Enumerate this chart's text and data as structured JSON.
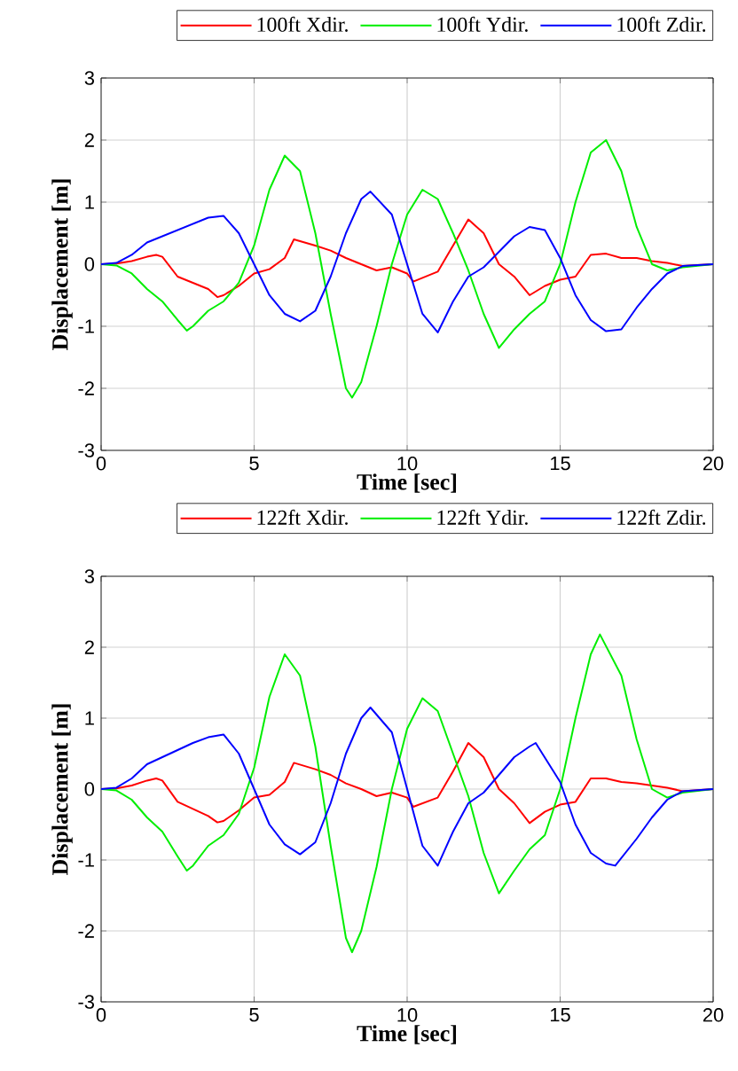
{
  "chart_data": [
    {
      "type": "line",
      "xlabel": "Time [sec]",
      "ylabel": "Displacement [m]",
      "xlim": [
        0,
        20
      ],
      "ylim": [
        -3,
        3
      ],
      "xticks": [
        0,
        5,
        10,
        15,
        20
      ],
      "yticks": [
        -3,
        -2,
        -1,
        0,
        1,
        2,
        3
      ],
      "grid": true,
      "legend": "top",
      "series": [
        {
          "name": "100ft Xdir.",
          "color": "#ff0000",
          "x": [
            0,
            0.5,
            1,
            1.5,
            1.8,
            2,
            2.5,
            3,
            3.5,
            3.8,
            4,
            4.5,
            5,
            5.5,
            6,
            6.3,
            7,
            7.5,
            8,
            8.5,
            9,
            9.5,
            10,
            10.2,
            11,
            11.5,
            12,
            12.5,
            13,
            13.5,
            14,
            14.5,
            15,
            15.5,
            16,
            16.5,
            17,
            17.5,
            18,
            18.5,
            19,
            20
          ],
          "values": [
            0,
            0.01,
            0.05,
            0.12,
            0.15,
            0.12,
            -0.2,
            -0.3,
            -0.4,
            -0.53,
            -0.5,
            -0.35,
            -0.15,
            -0.08,
            0.1,
            0.4,
            0.3,
            0.22,
            0.1,
            0.0,
            -0.1,
            -0.05,
            -0.15,
            -0.28,
            -0.12,
            0.3,
            0.72,
            0.5,
            0.0,
            -0.2,
            -0.5,
            -0.35,
            -0.25,
            -0.2,
            0.15,
            0.17,
            0.1,
            0.1,
            0.05,
            0.02,
            -0.03,
            0
          ]
        },
        {
          "name": "100ft Ydir.",
          "color": "#00ee00",
          "x": [
            0,
            0.5,
            1,
            1.5,
            2,
            2.5,
            2.8,
            3,
            3.5,
            4,
            4.5,
            5,
            5.5,
            6,
            6.5,
            7,
            7.5,
            8,
            8.2,
            8.5,
            9,
            9.5,
            10,
            10.5,
            11,
            11.5,
            12,
            12.5,
            13,
            13.5,
            14,
            14.5,
            15,
            15.5,
            16,
            16.5,
            17,
            17.5,
            18,
            18.5,
            19,
            20
          ],
          "values": [
            0,
            -0.02,
            -0.15,
            -0.4,
            -0.6,
            -0.9,
            -1.07,
            -1.0,
            -0.75,
            -0.6,
            -0.3,
            0.3,
            1.2,
            1.75,
            1.5,
            0.5,
            -0.8,
            -2.0,
            -2.15,
            -1.9,
            -1.0,
            0.0,
            0.8,
            1.2,
            1.05,
            0.5,
            -0.1,
            -0.8,
            -1.35,
            -1.05,
            -0.8,
            -0.6,
            0.0,
            1.0,
            1.8,
            2.0,
            1.5,
            0.6,
            0.0,
            -0.1,
            -0.05,
            0
          ]
        },
        {
          "name": "100ft Zdir.",
          "color": "#0000ff",
          "x": [
            0,
            0.5,
            1,
            1.5,
            2,
            2.5,
            3,
            3.5,
            4,
            4.5,
            5,
            5.5,
            6,
            6.5,
            7,
            7.5,
            8,
            8.5,
            8.8,
            9.5,
            10,
            10.5,
            11,
            11.5,
            12,
            12.5,
            13,
            13.5,
            14,
            14.5,
            15,
            15.5,
            16,
            16.5,
            17,
            17.5,
            18,
            18.5,
            19,
            20
          ],
          "values": [
            0,
            0.02,
            0.15,
            0.35,
            0.45,
            0.55,
            0.65,
            0.75,
            0.78,
            0.5,
            0.0,
            -0.5,
            -0.8,
            -0.92,
            -0.75,
            -0.2,
            0.5,
            1.05,
            1.17,
            0.8,
            0.0,
            -0.8,
            -1.1,
            -0.6,
            -0.2,
            -0.05,
            0.2,
            0.45,
            0.6,
            0.55,
            0.1,
            -0.5,
            -0.9,
            -1.08,
            -1.05,
            -0.7,
            -0.4,
            -0.15,
            -0.03,
            0
          ]
        }
      ]
    },
    {
      "type": "line",
      "xlabel": "Time [sec]",
      "ylabel": "Displacement [m]",
      "xlim": [
        0,
        20
      ],
      "ylim": [
        -3,
        3
      ],
      "xticks": [
        0,
        5,
        10,
        15,
        20
      ],
      "yticks": [
        -3,
        -2,
        -1,
        0,
        1,
        2,
        3
      ],
      "grid": true,
      "legend": "top",
      "series": [
        {
          "name": "122ft Xdir.",
          "color": "#ff0000",
          "x": [
            0,
            0.5,
            1,
            1.5,
            1.8,
            2,
            2.5,
            3,
            3.5,
            3.8,
            4,
            4.5,
            5,
            5.5,
            6,
            6.3,
            7,
            7.5,
            8,
            8.5,
            9,
            9.5,
            10,
            10.2,
            11,
            11.5,
            12,
            12.5,
            13,
            13.5,
            14,
            14.5,
            15,
            15.5,
            16,
            16.5,
            17,
            17.5,
            18,
            18.5,
            19,
            20
          ],
          "values": [
            0,
            0.01,
            0.05,
            0.12,
            0.15,
            0.12,
            -0.18,
            -0.28,
            -0.38,
            -0.47,
            -0.45,
            -0.3,
            -0.12,
            -0.08,
            0.1,
            0.37,
            0.28,
            0.2,
            0.08,
            0.0,
            -0.1,
            -0.05,
            -0.12,
            -0.25,
            -0.12,
            0.25,
            0.65,
            0.45,
            0.0,
            -0.2,
            -0.48,
            -0.32,
            -0.22,
            -0.18,
            0.15,
            0.15,
            0.1,
            0.08,
            0.05,
            0.02,
            -0.03,
            0
          ]
        },
        {
          "name": "122ft Ydir.",
          "color": "#00ee00",
          "x": [
            0,
            0.5,
            1,
            1.5,
            2,
            2.5,
            2.8,
            3,
            3.5,
            4,
            4.5,
            5,
            5.5,
            6,
            6.5,
            7,
            7.5,
            8,
            8.2,
            8.5,
            9,
            9.5,
            10,
            10.5,
            11,
            11.5,
            12,
            12.5,
            13,
            13.5,
            14,
            14.5,
            15,
            15.5,
            16,
            16.3,
            17,
            17.5,
            18,
            18.5,
            19,
            20
          ],
          "values": [
            0,
            -0.02,
            -0.15,
            -0.4,
            -0.6,
            -0.95,
            -1.15,
            -1.08,
            -0.8,
            -0.65,
            -0.35,
            0.3,
            1.3,
            1.9,
            1.6,
            0.6,
            -0.8,
            -2.1,
            -2.3,
            -2.0,
            -1.1,
            0.0,
            0.85,
            1.28,
            1.1,
            0.5,
            -0.1,
            -0.9,
            -1.47,
            -1.15,
            -0.85,
            -0.65,
            0.0,
            1.0,
            1.9,
            2.18,
            1.6,
            0.7,
            0.0,
            -0.12,
            -0.05,
            0
          ]
        },
        {
          "name": "122ft Zdir.",
          "color": "#0000ff",
          "x": [
            0,
            0.5,
            1,
            1.5,
            2,
            2.5,
            3,
            3.5,
            4,
            4.5,
            5,
            5.5,
            6,
            6.5,
            7,
            7.5,
            8,
            8.5,
            8.8,
            9.5,
            10,
            10.5,
            11,
            11.5,
            12,
            12.5,
            13,
            13.5,
            14,
            14.2,
            15,
            15.5,
            16,
            16.5,
            16.8,
            17.5,
            18,
            18.5,
            19,
            20
          ],
          "values": [
            0,
            0.02,
            0.15,
            0.35,
            0.45,
            0.55,
            0.65,
            0.73,
            0.77,
            0.5,
            0.0,
            -0.5,
            -0.78,
            -0.92,
            -0.75,
            -0.2,
            0.5,
            1.0,
            1.15,
            0.8,
            0.0,
            -0.8,
            -1.08,
            -0.6,
            -0.2,
            -0.05,
            0.2,
            0.45,
            0.6,
            0.65,
            0.1,
            -0.5,
            -0.9,
            -1.05,
            -1.08,
            -0.7,
            -0.4,
            -0.15,
            -0.03,
            0
          ]
        }
      ]
    }
  ]
}
